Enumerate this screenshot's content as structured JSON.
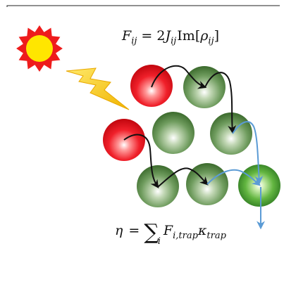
{
  "equations": {
    "flux": {
      "lhs": "F",
      "lhs_sub": "ij",
      "equals": "= 2",
      "coef": "J",
      "coef_sub": "ij",
      "op": "Im",
      "bracket_open": "[",
      "rho": "ρ",
      "rho_sub": "ij",
      "bracket_close": "]"
    },
    "efficiency": {
      "lhs": "η",
      "equals": "=",
      "sum": "∑",
      "sum_sub": "i",
      "term": "F",
      "term_sub": "i,trap",
      "kappa": "κ",
      "kappa_sub": "trap"
    }
  },
  "icons": {
    "sun": "sun-icon",
    "lightning": "lightning-bolt-icon"
  },
  "colors": {
    "excited_site": "#e8101a",
    "ground_site": "#5c8a4c",
    "trap_site": "#5db33d",
    "transfer_arrow": "#111111",
    "trap_arrow": "#5b9bd5",
    "sun_core": "#ffe600",
    "sun_rays": "#ee1c1c",
    "bolt": "#f2c200"
  }
}
